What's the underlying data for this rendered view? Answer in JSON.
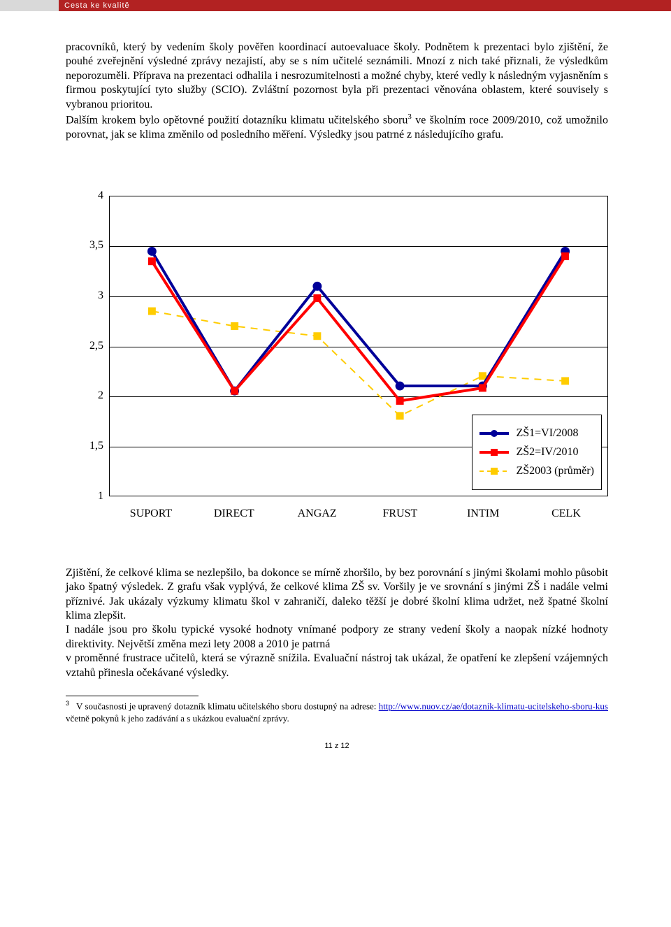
{
  "header": {
    "title": "Cesta ke kvalitě"
  },
  "paragraph1": "pracovníků, který by vedením školy pověřen koordinací autoevaluace školy. Podnětem k prezentaci bylo zjištění, že pouhé zveřejnění výsledné zprávy nezajistí, aby se s ním učitelé seznámili. Mnozí z nich také přiznali, že výsledkům neporozuměli. Příprava na prezentaci odhalila i nesrozumitelnosti a možné chyby, které vedly k následným vyjasněním s firmou poskytující tyto služby (SCIO). Zvláštní pozornost byla při prezentaci věnována oblastem, které souvisely s vybranou prioritou.",
  "paragraph2_pre": "Dalším krokem bylo opětovné použití dotazníku klimatu učitelského sboru",
  "paragraph2_sup": "3",
  "paragraph2_post": " ve školním roce 2009/2010, což umožnilo porovnat, jak se klima změnilo od posledního měření. Výsledky jsou patrné z následujícího grafu.",
  "chart": {
    "type": "line",
    "ylim": [
      1,
      4
    ],
    "ytick_step": 0.5,
    "y_ticks": [
      "4",
      "3,5",
      "3",
      "2,5",
      "2",
      "1,5",
      "1"
    ],
    "categories": [
      "SUPORT",
      "DIRECT",
      "ANGAZ",
      "FRUST",
      "INTIM",
      "CELK"
    ],
    "series": [
      {
        "name": "ZŠ1=VI/2008",
        "color": "#000099",
        "marker": "circle",
        "marker_fill": "#000099",
        "line_width": 4,
        "dash": "none",
        "values": [
          3.45,
          2.05,
          3.1,
          2.1,
          2.1,
          3.45
        ]
      },
      {
        "name": "ZŠ2=IV/2010",
        "color": "#ff0000",
        "marker": "square",
        "marker_fill": "#ff0000",
        "line_width": 4,
        "dash": "none",
        "values": [
          3.35,
          2.05,
          2.98,
          1.95,
          2.08,
          3.4
        ]
      },
      {
        "name": "ZŠ2003 (průměr)",
        "color": "#ffcc00",
        "marker": "square",
        "marker_fill": "#ffcc00",
        "line_width": 2,
        "dash": "dashed",
        "values": [
          2.85,
          2.7,
          2.6,
          1.8,
          2.2,
          2.15
        ]
      }
    ],
    "background_color": "#ffffff",
    "grid_color": "#000000"
  },
  "paragraph3": "Zjištění, že celkové klima se nezlepšilo, ba dokonce se mírně zhoršilo, by bez porovnání s jinými školami mohlo působit jako špatný výsledek. Z grafu však vyplývá, že celkové klima ZŠ sv. Voršily je ve srovnání s jinými ZŠ i nadále velmi příznivé. Jak ukázaly výzkumy klimatu škol v zahraničí, daleko těžší je dobré školní klima udržet, než špatné školní klima zlepšit.",
  "paragraph4": "I nadále jsou pro školu typické vysoké hodnoty vnímané podpory ze strany vedení školy a naopak nízké hodnoty direktivity. Největší změna mezi lety 2008 a 2010 je patrná",
  "paragraph5": "v proměnné frustrace učitelů, která se výrazně snížila. Evaluační nástroj tak ukázal, že opatření ke zlepšení vzájemných vztahů přinesla očekávané výsledky.",
  "footnote": {
    "num": "3",
    "pre": "V současnosti je upravený dotazník klimatu učitelského sboru dostupný na adrese: ",
    "link_text": "http://www.nuov.cz/ae/dotaznik-klimatu-ucitelskeho-sboru-kus",
    "post": " včetně pokynů k jeho zadávání a s ukázkou evaluační zprávy."
  },
  "page_number": "11 z 12"
}
